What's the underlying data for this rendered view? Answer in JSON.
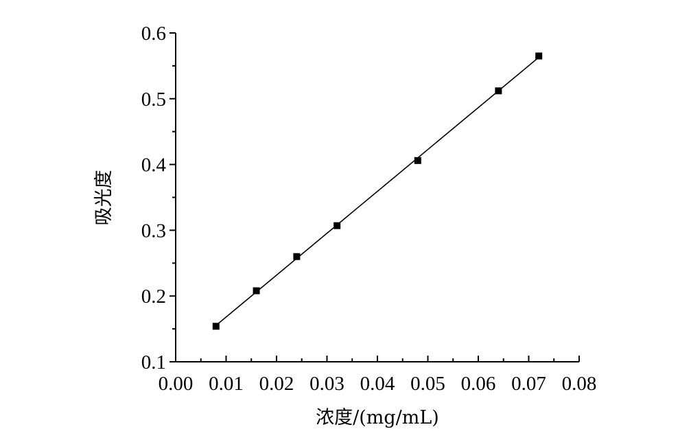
{
  "chart_data": {
    "type": "scatter",
    "xlabel": "浓度/(mg/mL)",
    "ylabel": "吸光度",
    "xlim": [
      0.0,
      0.08
    ],
    "ylim": [
      0.1,
      0.6
    ],
    "x_ticks": [
      "0.00",
      "0.01",
      "0.02",
      "0.03",
      "0.04",
      "0.05",
      "0.06",
      "0.07",
      "0.08"
    ],
    "y_ticks": [
      "0.1",
      "0.2",
      "0.3",
      "0.4",
      "0.5",
      "0.6"
    ],
    "grid": false,
    "series": [
      {
        "marker": "square",
        "color": "#000000",
        "fit_line": true,
        "x": [
          0.008,
          0.016,
          0.024,
          0.032,
          0.048,
          0.064,
          0.072
        ],
        "y": [
          0.154,
          0.208,
          0.26,
          0.307,
          0.406,
          0.512,
          0.565
        ]
      }
    ]
  }
}
